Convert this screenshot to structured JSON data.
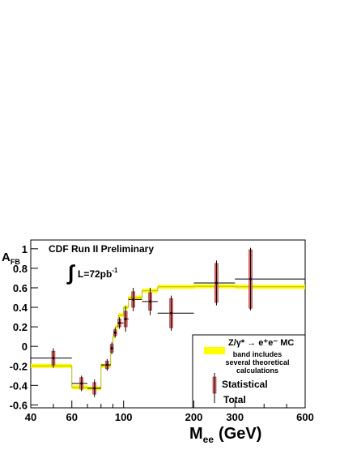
{
  "chart_data": {
    "type": "errorbar",
    "title": "CDF Run II Preliminary",
    "lumi_integral": "∫",
    "lumi_text": "L=72pb",
    "lumi_sup": "-1",
    "ylabel_main": "A",
    "ylabel_sub": "FB",
    "xlabel_main": "M",
    "xlabel_sub": "ee",
    "xlabel_unit": "(GeV)",
    "xlog": true,
    "xlim": [
      40,
      600
    ],
    "ylim": [
      -0.63,
      1.09
    ],
    "xticks": [
      40,
      60,
      100,
      200,
      300,
      600
    ],
    "xminor_ticks": [
      50,
      70,
      80,
      90,
      400,
      500
    ],
    "yticks": [
      -0.6,
      -0.4,
      -0.2,
      0,
      0.2,
      0.4,
      0.6,
      0.8,
      1
    ],
    "data": {
      "name": "Statistical",
      "total_name": "Total",
      "color": "#e07070",
      "x": [
        50,
        66,
        75,
        85,
        89,
        92,
        96,
        102,
        110,
        130,
        160,
        250,
        350
      ],
      "values": [
        -0.12,
        -0.38,
        -0.43,
        -0.19,
        -0.02,
        0.14,
        0.24,
        0.28,
        0.48,
        0.46,
        0.34,
        0.65,
        0.69
      ],
      "x_low": [
        40,
        60,
        70,
        80,
        88,
        91,
        94,
        100,
        105,
        120,
        140,
        200,
        300
      ],
      "x_high": [
        60,
        70,
        80,
        88,
        90,
        93,
        100,
        105,
        120,
        140,
        200,
        300,
        600
      ],
      "stat_err": [
        0.07,
        0.06,
        0.06,
        0.04,
        0.04,
        0.03,
        0.04,
        0.08,
        0.08,
        0.09,
        0.15,
        0.2,
        0.3
      ],
      "total_err": [
        0.1,
        0.08,
        0.09,
        0.06,
        0.06,
        0.05,
        0.06,
        0.13,
        0.12,
        0.14,
        0.18,
        0.23,
        0.32
      ]
    },
    "mc": {
      "name": "Z/γ* → e⁺e⁻ MC",
      "note": [
        "band includes",
        "several theoretical",
        "calculations"
      ],
      "color": "#b5b520",
      "band_color": "#ffff00",
      "bins": [
        40,
        60,
        70,
        80,
        88,
        90,
        92,
        95,
        100,
        105,
        120,
        140,
        200,
        300,
        600
      ],
      "values": [
        -0.2,
        -0.42,
        -0.43,
        -0.2,
        -0.05,
        0.1,
        0.2,
        0.32,
        0.4,
        0.5,
        0.57,
        0.61,
        0.615,
        0.61
      ]
    }
  }
}
